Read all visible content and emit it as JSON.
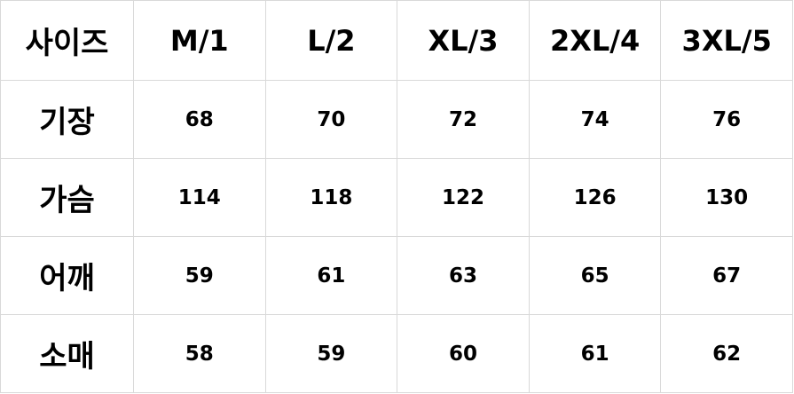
{
  "table": {
    "header": [
      "사이즈",
      "M/1",
      "L/2",
      "XL/3",
      "2XL/4",
      "3XL/5"
    ],
    "rows": [
      {
        "label": "기장",
        "values": [
          "68",
          "70",
          "72",
          "74",
          "76"
        ]
      },
      {
        "label": "가슴",
        "values": [
          "114",
          "118",
          "122",
          "126",
          "130"
        ]
      },
      {
        "label": "어깨",
        "values": [
          "59",
          "61",
          "63",
          "65",
          "67"
        ]
      },
      {
        "label": "소매",
        "values": [
          "58",
          "59",
          "60",
          "61",
          "62"
        ]
      }
    ]
  }
}
